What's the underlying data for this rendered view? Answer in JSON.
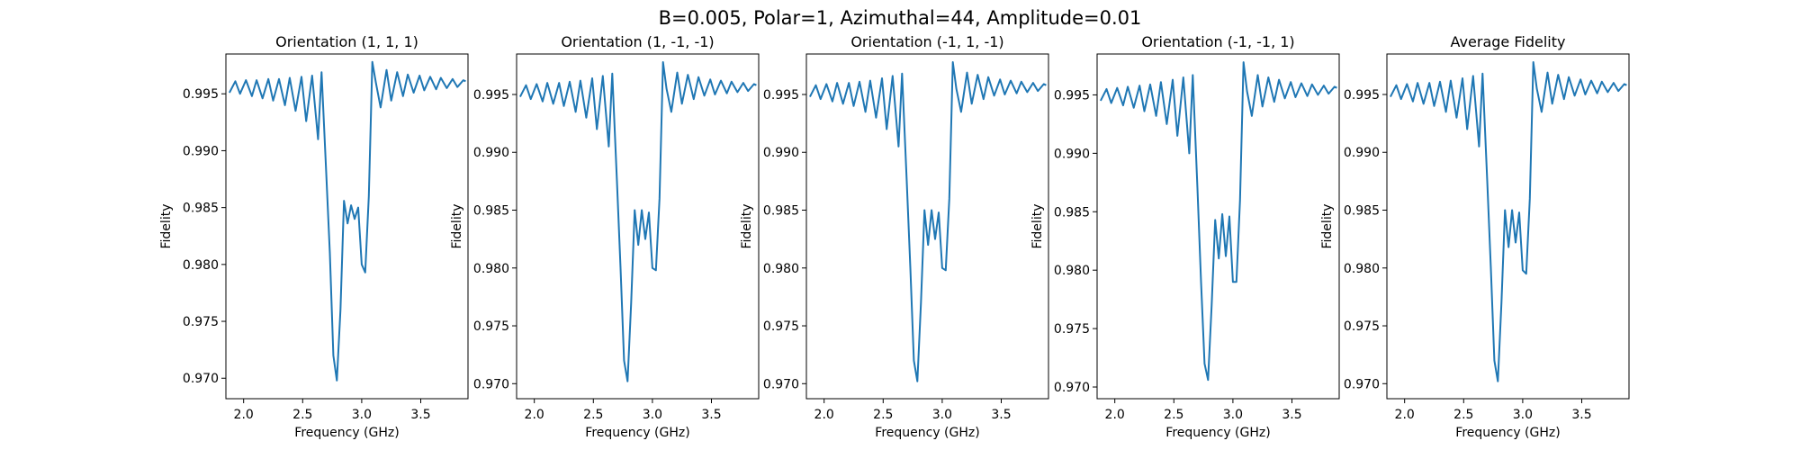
{
  "figure": {
    "suptitle": "B=0.005, Polar=1, Azimuthal=44, Amplitude=0.01"
  },
  "colors": {
    "line": "#1f77b4"
  },
  "chart_data": [
    {
      "type": "line",
      "title": "Orientation (1, 1, 1)",
      "xlabel": "Frequency (GHz)",
      "ylabel": "Fidelity",
      "xlim": [
        1.85,
        3.9
      ],
      "ylim": [
        0.9682,
        0.9985
      ],
      "xticks": [
        "2.0",
        "2.5",
        "3.0",
        "3.5"
      ],
      "yticks": [
        "0.970",
        "0.975",
        "0.980",
        "0.985",
        "0.990",
        "0.995"
      ],
      "grid": false,
      "series": [
        {
          "x": [
            1.88,
            1.93,
            1.97,
            2.02,
            2.07,
            2.11,
            2.16,
            2.21,
            2.25,
            2.3,
            2.35,
            2.39,
            2.44,
            2.49,
            2.53,
            2.58,
            2.63,
            2.66,
            2.7,
            2.73,
            2.76,
            2.79,
            2.82,
            2.85,
            2.88,
            2.91,
            2.94,
            2.97,
            3.0,
            3.03,
            3.06,
            3.09,
            3.12,
            3.16,
            3.21,
            3.25,
            3.3,
            3.35,
            3.39,
            3.44,
            3.49,
            3.53,
            3.58,
            3.63,
            3.67,
            3.72,
            3.77,
            3.81,
            3.86,
            3.88
          ],
          "y": [
            0.9951,
            0.9961,
            0.995,
            0.9962,
            0.9948,
            0.9962,
            0.9946,
            0.9963,
            0.9944,
            0.9963,
            0.994,
            0.9964,
            0.9935,
            0.9965,
            0.9926,
            0.9966,
            0.991,
            0.9969,
            0.988,
            0.981,
            0.972,
            0.9698,
            0.976,
            0.9856,
            0.9836,
            0.9852,
            0.984,
            0.985,
            0.98,
            0.9793,
            0.986,
            0.9978,
            0.996,
            0.9938,
            0.9971,
            0.9944,
            0.9969,
            0.9948,
            0.9967,
            0.9951,
            0.9966,
            0.9953,
            0.9965,
            0.9954,
            0.9964,
            0.9955,
            0.9963,
            0.9956,
            0.9962,
            0.9961
          ]
        }
      ]
    },
    {
      "type": "line",
      "title": "Orientation (1, -1, -1)",
      "xlabel": "Frequency (GHz)",
      "ylabel": "Fidelity",
      "xlim": [
        1.85,
        3.9
      ],
      "ylim": [
        0.9687,
        0.9985
      ],
      "xticks": [
        "2.0",
        "2.5",
        "3.0",
        "3.5"
      ],
      "yticks": [
        "0.970",
        "0.975",
        "0.980",
        "0.985",
        "0.990",
        "0.995"
      ],
      "grid": false,
      "series": [
        {
          "x": [
            1.88,
            1.93,
            1.97,
            2.02,
            2.07,
            2.11,
            2.16,
            2.21,
            2.25,
            2.3,
            2.35,
            2.39,
            2.44,
            2.49,
            2.53,
            2.58,
            2.63,
            2.66,
            2.7,
            2.73,
            2.76,
            2.79,
            2.82,
            2.85,
            2.88,
            2.91,
            2.94,
            2.97,
            3.0,
            3.03,
            3.06,
            3.09,
            3.12,
            3.16,
            3.21,
            3.25,
            3.3,
            3.35,
            3.39,
            3.44,
            3.49,
            3.53,
            3.58,
            3.63,
            3.67,
            3.72,
            3.77,
            3.81,
            3.86,
            3.88
          ],
          "y": [
            0.9948,
            0.9958,
            0.9946,
            0.9959,
            0.9944,
            0.996,
            0.9942,
            0.996,
            0.994,
            0.9961,
            0.9935,
            0.9962,
            0.993,
            0.9964,
            0.992,
            0.9966,
            0.9905,
            0.9968,
            0.9875,
            0.98,
            0.972,
            0.9702,
            0.977,
            0.985,
            0.982,
            0.985,
            0.9825,
            0.9848,
            0.98,
            0.9798,
            0.986,
            0.9978,
            0.9955,
            0.9935,
            0.9969,
            0.9942,
            0.9967,
            0.9946,
            0.9965,
            0.9949,
            0.9963,
            0.995,
            0.9962,
            0.9951,
            0.9961,
            0.9952,
            0.996,
            0.9953,
            0.9959,
            0.9958
          ]
        }
      ]
    },
    {
      "type": "line",
      "title": "Orientation (-1, 1, -1)",
      "xlabel": "Frequency (GHz)",
      "ylabel": "Fidelity",
      "xlim": [
        1.85,
        3.9
      ],
      "ylim": [
        0.9687,
        0.9985
      ],
      "xticks": [
        "2.0",
        "2.5",
        "3.0",
        "3.5"
      ],
      "yticks": [
        "0.970",
        "0.975",
        "0.980",
        "0.985",
        "0.990",
        "0.995"
      ],
      "grid": false,
      "series": [
        {
          "x": [
            1.88,
            1.93,
            1.97,
            2.02,
            2.07,
            2.11,
            2.16,
            2.21,
            2.25,
            2.3,
            2.35,
            2.39,
            2.44,
            2.49,
            2.53,
            2.58,
            2.63,
            2.66,
            2.7,
            2.73,
            2.76,
            2.79,
            2.82,
            2.85,
            2.88,
            2.91,
            2.94,
            2.97,
            3.0,
            3.03,
            3.06,
            3.09,
            3.12,
            3.16,
            3.21,
            3.25,
            3.3,
            3.35,
            3.39,
            3.44,
            3.49,
            3.53,
            3.58,
            3.63,
            3.67,
            3.72,
            3.77,
            3.81,
            3.86,
            3.88
          ],
          "y": [
            0.9948,
            0.9958,
            0.9946,
            0.9959,
            0.9944,
            0.996,
            0.9942,
            0.996,
            0.994,
            0.9961,
            0.9935,
            0.9962,
            0.993,
            0.9964,
            0.992,
            0.9966,
            0.9905,
            0.9968,
            0.9875,
            0.98,
            0.972,
            0.9702,
            0.977,
            0.985,
            0.982,
            0.985,
            0.9825,
            0.9848,
            0.98,
            0.9798,
            0.986,
            0.9978,
            0.9955,
            0.9935,
            0.9969,
            0.9942,
            0.9967,
            0.9946,
            0.9965,
            0.9949,
            0.9963,
            0.995,
            0.9962,
            0.9951,
            0.9961,
            0.9952,
            0.996,
            0.9953,
            0.9959,
            0.9958
          ]
        }
      ]
    },
    {
      "type": "line",
      "title": "Orientation (-1, -1, 1)",
      "xlabel": "Frequency (GHz)",
      "ylabel": "Fidelity",
      "xlim": [
        1.85,
        3.9
      ],
      "ylim": [
        0.969,
        0.9985
      ],
      "xticks": [
        "2.0",
        "2.5",
        "3.0",
        "3.5"
      ],
      "yticks": [
        "0.970",
        "0.975",
        "0.980",
        "0.985",
        "0.990",
        "0.995"
      ],
      "grid": false,
      "series": [
        {
          "x": [
            1.88,
            1.93,
            1.97,
            2.02,
            2.07,
            2.11,
            2.16,
            2.21,
            2.25,
            2.3,
            2.35,
            2.39,
            2.44,
            2.49,
            2.53,
            2.58,
            2.63,
            2.66,
            2.7,
            2.73,
            2.76,
            2.79,
            2.82,
            2.85,
            2.88,
            2.91,
            2.94,
            2.97,
            3.0,
            3.03,
            3.06,
            3.09,
            3.12,
            3.16,
            3.21,
            3.25,
            3.3,
            3.35,
            3.39,
            3.44,
            3.49,
            3.53,
            3.58,
            3.63,
            3.67,
            3.72,
            3.77,
            3.81,
            3.86,
            3.88
          ],
          "y": [
            0.9945,
            0.9955,
            0.9943,
            0.9956,
            0.9941,
            0.9957,
            0.9939,
            0.9958,
            0.9936,
            0.9959,
            0.9932,
            0.9961,
            0.9925,
            0.9963,
            0.9915,
            0.9965,
            0.99,
            0.9967,
            0.987,
            0.979,
            0.972,
            0.9706,
            0.977,
            0.9843,
            0.981,
            0.9848,
            0.9812,
            0.9846,
            0.979,
            0.979,
            0.986,
            0.9978,
            0.9953,
            0.9932,
            0.9967,
            0.994,
            0.9965,
            0.9944,
            0.9963,
            0.9947,
            0.9961,
            0.9948,
            0.996,
            0.9949,
            0.9959,
            0.995,
            0.9958,
            0.9951,
            0.9957,
            0.9956
          ]
        }
      ]
    },
    {
      "type": "line",
      "title": "Average Fidelity",
      "xlabel": "Frequency (GHz)",
      "ylabel": "Fidelity",
      "xlim": [
        1.85,
        3.9
      ],
      "ylim": [
        0.9687,
        0.9985
      ],
      "xticks": [
        "2.0",
        "2.5",
        "3.0",
        "3.5"
      ],
      "yticks": [
        "0.970",
        "0.975",
        "0.980",
        "0.985",
        "0.990",
        "0.995"
      ],
      "grid": false,
      "series": [
        {
          "x": [
            1.88,
            1.93,
            1.97,
            2.02,
            2.07,
            2.11,
            2.16,
            2.21,
            2.25,
            2.3,
            2.35,
            2.39,
            2.44,
            2.49,
            2.53,
            2.58,
            2.63,
            2.66,
            2.7,
            2.73,
            2.76,
            2.79,
            2.82,
            2.85,
            2.88,
            2.91,
            2.94,
            2.97,
            3.0,
            3.03,
            3.06,
            3.09,
            3.12,
            3.16,
            3.21,
            3.25,
            3.3,
            3.35,
            3.39,
            3.44,
            3.49,
            3.53,
            3.58,
            3.63,
            3.67,
            3.72,
            3.77,
            3.81,
            3.86,
            3.88
          ],
          "y": [
            0.9948,
            0.9958,
            0.9946,
            0.9959,
            0.9944,
            0.996,
            0.9942,
            0.996,
            0.994,
            0.9961,
            0.9935,
            0.9962,
            0.993,
            0.9964,
            0.992,
            0.9966,
            0.9905,
            0.9968,
            0.9875,
            0.98,
            0.972,
            0.9702,
            0.977,
            0.985,
            0.9818,
            0.985,
            0.9822,
            0.9848,
            0.9798,
            0.9795,
            0.986,
            0.9978,
            0.9955,
            0.9935,
            0.9969,
            0.9942,
            0.9967,
            0.9946,
            0.9965,
            0.9949,
            0.9963,
            0.995,
            0.9962,
            0.9951,
            0.9961,
            0.9952,
            0.996,
            0.9953,
            0.9959,
            0.9958
          ]
        }
      ]
    }
  ]
}
